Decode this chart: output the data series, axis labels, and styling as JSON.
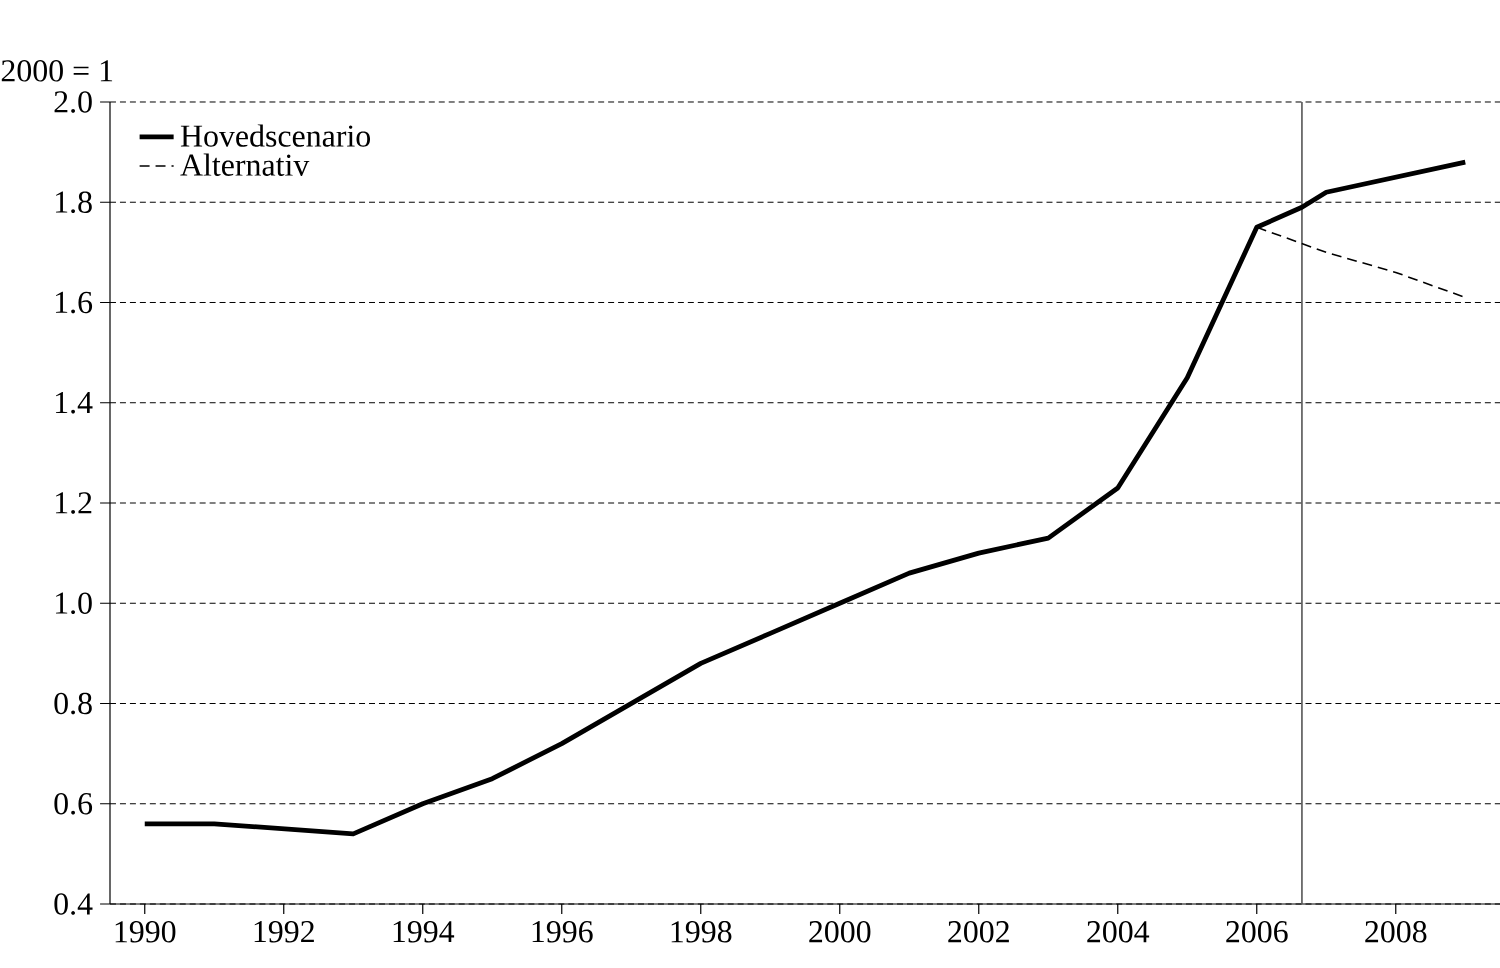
{
  "chart_data": {
    "type": "line",
    "ylabel": "2000 = 1",
    "xlim": [
      1989.5,
      2009.5
    ],
    "xticks": [
      1990,
      1992,
      1994,
      1996,
      1998,
      2000,
      2002,
      2004,
      2006,
      2008
    ],
    "ylim": [
      0.4,
      2.0
    ],
    "yticks": [
      {
        "value": 0.4,
        "label": "0.4"
      },
      {
        "value": 0.6,
        "label": "0.6"
      },
      {
        "value": 0.8,
        "label": "0.8"
      },
      {
        "value": 1.0,
        "label": "1.0"
      },
      {
        "value": 1.2,
        "label": "1.2"
      },
      {
        "value": 1.4,
        "label": "1.4"
      },
      {
        "value": 1.6,
        "label": "1.6"
      },
      {
        "value": 1.8,
        "label": "1.8"
      },
      {
        "value": 2.0,
        "label": "2.0"
      }
    ],
    "grid": "y",
    "legend": "top left",
    "ref_lines": [
      {
        "axis": "x",
        "value": 2006.65,
        "color": "#555555"
      }
    ],
    "series": [
      {
        "name": "Hovedscenario",
        "color": "#000000",
        "line_style": "solid",
        "x": [
          1990,
          1991,
          1992,
          1993,
          1994,
          1995,
          1996,
          1997,
          1998,
          1999,
          2000,
          2001,
          2002,
          2003,
          2004,
          2005,
          2006,
          2006.65,
          2007,
          2008,
          2009
        ],
        "values": [
          0.56,
          0.56,
          0.55,
          0.54,
          0.6,
          0.65,
          0.72,
          0.8,
          0.88,
          0.94,
          1.0,
          1.06,
          1.1,
          1.13,
          1.23,
          1.45,
          1.75,
          1.79,
          1.82,
          1.85,
          1.88
        ]
      },
      {
        "name": "Alternativ",
        "color": "#000000",
        "line_style": "dashed",
        "x": [
          2006,
          2007,
          2008,
          2009
        ],
        "values": [
          1.75,
          1.7,
          1.66,
          1.61
        ]
      }
    ]
  }
}
